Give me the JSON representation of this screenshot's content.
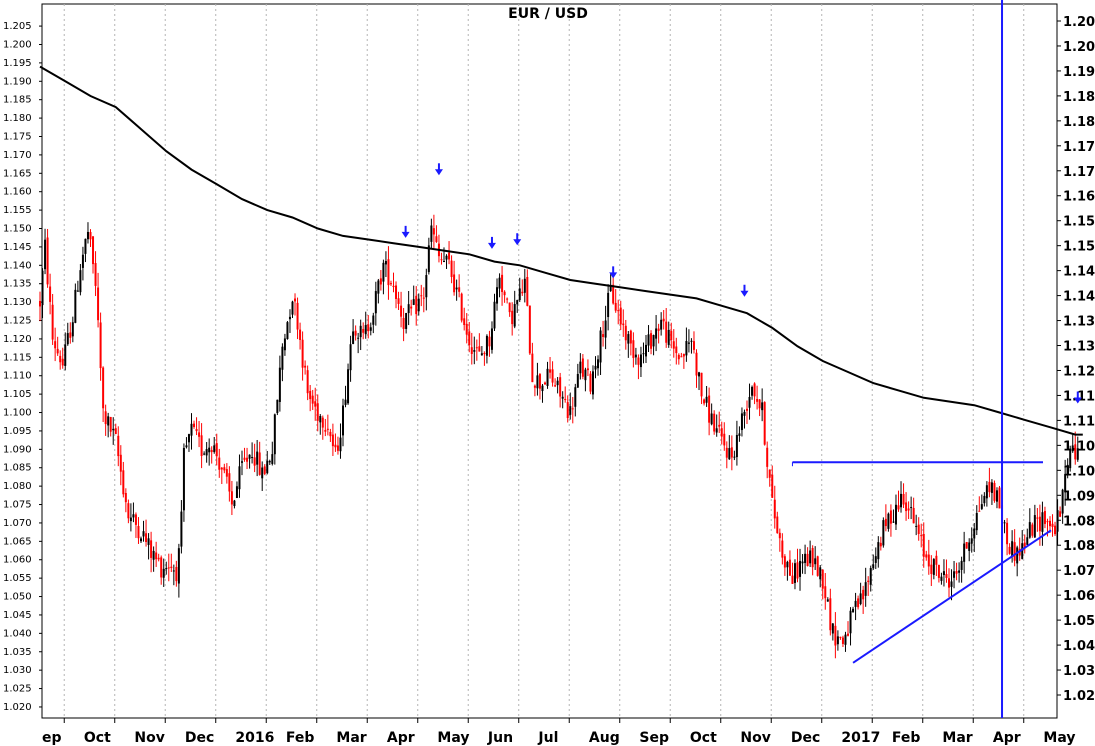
{
  "chart_data": {
    "type": "candlestick",
    "title": "EUR / USD",
    "xlabel": "",
    "ylabel": "",
    "ylim": [
      1.017,
      1.211
    ],
    "grid": "vertical dotted at month starts",
    "left_axis_ticks": [
      "1.020",
      "1.025",
      "1.030",
      "1.035",
      "1.040",
      "1.045",
      "1.050",
      "1.055",
      "1.060",
      "1.065",
      "1.070",
      "1.075",
      "1.080",
      "1.085",
      "1.090",
      "1.095",
      "1.100",
      "1.105",
      "1.110",
      "1.115",
      "1.120",
      "1.125",
      "1.130",
      "1.135",
      "1.140",
      "1.145",
      "1.150",
      "1.155",
      "1.160",
      "1.165",
      "1.170",
      "1.175",
      "1.180",
      "1.185",
      "1.190",
      "1.195",
      "1.200",
      "1.205"
    ],
    "right_axis_ticks": [
      "1.02",
      "1.03",
      "1.04",
      "1.05",
      "1.06",
      "1.07",
      "1.08",
      "1.08",
      "1.09",
      "1.10",
      "1.10",
      "1.11",
      "1.11",
      "1.12",
      "1.13",
      "1.13",
      "1.14",
      "1.14",
      "1.15",
      "1.15",
      "1.16",
      "1.17",
      "1.17",
      "1.18",
      "1.18",
      "1.19",
      "1.20",
      "1.20"
    ],
    "x_labels": [
      {
        "label": "ep",
        "m": 0.0
      },
      {
        "label": "Oct",
        "m": 0.83
      },
      {
        "label": "Nov",
        "m": 1.83
      },
      {
        "label": "Dec",
        "m": 2.83
      },
      {
        "label": "2016",
        "m": 3.83
      },
      {
        "label": "Feb",
        "m": 4.83
      },
      {
        "label": "Mar",
        "m": 5.83
      },
      {
        "label": "Apr",
        "m": 6.83
      },
      {
        "label": "May",
        "m": 7.83
      },
      {
        "label": "Jun",
        "m": 8.83
      },
      {
        "label": "Jul",
        "m": 9.83
      },
      {
        "label": "Aug",
        "m": 10.83
      },
      {
        "label": "Sep",
        "m": 11.83
      },
      {
        "label": "Oct",
        "m": 12.83
      },
      {
        "label": "Nov",
        "m": 13.83
      },
      {
        "label": "Dec",
        "m": 14.83
      },
      {
        "label": "2017",
        "m": 15.83
      },
      {
        "label": "Feb",
        "m": 16.83
      },
      {
        "label": "Mar",
        "m": 17.83
      },
      {
        "label": "Apr",
        "m": 18.83
      },
      {
        "label": "May",
        "m": 19.83
      }
    ],
    "price_path": [
      [
        0.0,
        1.13
      ],
      [
        0.1,
        1.145
      ],
      [
        0.25,
        1.12
      ],
      [
        0.45,
        1.113
      ],
      [
        0.65,
        1.126
      ],
      [
        0.8,
        1.14
      ],
      [
        0.95,
        1.149
      ],
      [
        1.1,
        1.135
      ],
      [
        1.25,
        1.1
      ],
      [
        1.5,
        1.092
      ],
      [
        1.75,
        1.072
      ],
      [
        2.0,
        1.068
      ],
      [
        2.2,
        1.062
      ],
      [
        2.4,
        1.058
      ],
      [
        2.55,
        1.059
      ],
      [
        2.7,
        1.057
      ],
      [
        2.78,
        1.063
      ],
      [
        2.85,
        1.088
      ],
      [
        3.0,
        1.095
      ],
      [
        3.2,
        1.09
      ],
      [
        3.4,
        1.092
      ],
      [
        3.6,
        1.085
      ],
      [
        3.8,
        1.075
      ],
      [
        4.0,
        1.085
      ],
      [
        4.2,
        1.09
      ],
      [
        4.4,
        1.083
      ],
      [
        4.6,
        1.09
      ],
      [
        4.8,
        1.118
      ],
      [
        5.0,
        1.132
      ],
      [
        5.1,
        1.125
      ],
      [
        5.3,
        1.105
      ],
      [
        5.5,
        1.1
      ],
      [
        5.7,
        1.097
      ],
      [
        5.85,
        1.088
      ],
      [
        6.0,
        1.1
      ],
      [
        6.2,
        1.125
      ],
      [
        6.4,
        1.12
      ],
      [
        6.6,
        1.128
      ],
      [
        6.8,
        1.14
      ],
      [
        7.0,
        1.135
      ],
      [
        7.2,
        1.125
      ],
      [
        7.4,
        1.128
      ],
      [
        7.6,
        1.132
      ],
      [
        7.75,
        1.15
      ],
      [
        7.9,
        1.142
      ],
      [
        8.1,
        1.14
      ],
      [
        8.3,
        1.13
      ],
      [
        8.5,
        1.12
      ],
      [
        8.7,
        1.115
      ],
      [
        8.9,
        1.12
      ],
      [
        9.1,
        1.138
      ],
      [
        9.3,
        1.125
      ],
      [
        9.45,
        1.13
      ],
      [
        9.6,
        1.135
      ],
      [
        9.75,
        1.11
      ],
      [
        9.9,
        1.108
      ],
      [
        10.1,
        1.11
      ],
      [
        10.3,
        1.105
      ],
      [
        10.5,
        1.1
      ],
      [
        10.7,
        1.112
      ],
      [
        10.9,
        1.108
      ],
      [
        11.1,
        1.12
      ],
      [
        11.3,
        1.133
      ],
      [
        11.5,
        1.125
      ],
      [
        11.7,
        1.118
      ],
      [
        11.9,
        1.115
      ],
      [
        12.1,
        1.12
      ],
      [
        12.3,
        1.125
      ],
      [
        12.5,
        1.118
      ],
      [
        12.7,
        1.115
      ],
      [
        12.9,
        1.12
      ],
      [
        13.1,
        1.105
      ],
      [
        13.3,
        1.098
      ],
      [
        13.5,
        1.092
      ],
      [
        13.7,
        1.088
      ],
      [
        13.9,
        1.098
      ],
      [
        14.1,
        1.108
      ],
      [
        14.3,
        1.1
      ],
      [
        14.5,
        1.075
      ],
      [
        14.7,
        1.062
      ],
      [
        14.9,
        1.055
      ],
      [
        15.1,
        1.06
      ],
      [
        15.3,
        1.06
      ],
      [
        15.5,
        1.055
      ],
      [
        15.7,
        1.04
      ],
      [
        15.9,
        1.038
      ],
      [
        16.1,
        1.045
      ],
      [
        16.3,
        1.05
      ],
      [
        16.5,
        1.06
      ],
      [
        16.7,
        1.068
      ],
      [
        16.9,
        1.073
      ],
      [
        17.1,
        1.078
      ],
      [
        17.3,
        1.07
      ],
      [
        17.5,
        1.062
      ],
      [
        17.7,
        1.058
      ],
      [
        17.9,
        1.055
      ],
      [
        18.1,
        1.055
      ],
      [
        18.3,
        1.062
      ],
      [
        18.5,
        1.07
      ],
      [
        18.7,
        1.078
      ],
      [
        18.85,
        1.08
      ],
      [
        19.0,
        1.075
      ],
      [
        19.15,
        1.065
      ],
      [
        19.3,
        1.062
      ],
      [
        19.45,
        1.063
      ],
      [
        19.6,
        1.068
      ],
      [
        19.75,
        1.07
      ],
      [
        19.9,
        1.072
      ],
      [
        20.05,
        1.068
      ],
      [
        20.2,
        1.072
      ],
      [
        20.35,
        1.088
      ],
      [
        20.5,
        1.09
      ],
      [
        20.6,
        1.085
      ]
    ],
    "moving_average": [
      [
        0.0,
        1.194
      ],
      [
        0.5,
        1.19
      ],
      [
        1.0,
        1.186
      ],
      [
        1.5,
        1.183
      ],
      [
        2.0,
        1.177
      ],
      [
        2.5,
        1.171
      ],
      [
        3.0,
        1.166
      ],
      [
        3.5,
        1.162
      ],
      [
        4.0,
        1.158
      ],
      [
        4.5,
        1.155
      ],
      [
        5.0,
        1.153
      ],
      [
        5.5,
        1.15
      ],
      [
        6.0,
        1.148
      ],
      [
        6.5,
        1.147
      ],
      [
        7.0,
        1.146
      ],
      [
        7.5,
        1.145
      ],
      [
        8.0,
        1.144
      ],
      [
        8.5,
        1.143
      ],
      [
        9.0,
        1.141
      ],
      [
        9.5,
        1.14
      ],
      [
        10.0,
        1.138
      ],
      [
        10.5,
        1.136
      ],
      [
        11.0,
        1.135
      ],
      [
        11.5,
        1.134
      ],
      [
        12.0,
        1.133
      ],
      [
        12.5,
        1.132
      ],
      [
        13.0,
        1.131
      ],
      [
        13.5,
        1.129
      ],
      [
        14.0,
        1.127
      ],
      [
        14.5,
        1.123
      ],
      [
        15.0,
        1.118
      ],
      [
        15.5,
        1.114
      ],
      [
        16.0,
        1.111
      ],
      [
        16.5,
        1.108
      ],
      [
        17.0,
        1.106
      ],
      [
        17.5,
        1.104
      ],
      [
        18.0,
        1.103
      ],
      [
        18.5,
        1.102
      ],
      [
        19.0,
        1.1
      ],
      [
        19.5,
        1.098
      ],
      [
        20.0,
        1.096
      ],
      [
        20.5,
        1.094
      ],
      [
        20.65,
        1.094
      ]
    ],
    "blue_arrows": [
      {
        "m": 7.24,
        "value": 1.148
      },
      {
        "m": 7.9,
        "value": 1.165
      },
      {
        "m": 8.95,
        "value": 1.145
      },
      {
        "m": 9.45,
        "value": 1.146
      },
      {
        "m": 11.35,
        "value": 1.137
      },
      {
        "m": 13.95,
        "value": 1.132
      },
      {
        "m": 20.55,
        "value": 1.103
      }
    ],
    "horizontal_resistance": {
      "m_start": 14.9,
      "m_end": 21.0,
      "value": 1.0865
    },
    "rising_trendline": {
      "m_start": 16.1,
      "value_start": 1.032,
      "m_end": 21.1,
      "value_end": 1.068
    },
    "vertical_marker": {
      "m": 19.05
    },
    "colors": {
      "up": "#000000",
      "down": "#ff0000",
      "moving_average": "#000000",
      "annotation": "#1a1aff",
      "grid": "#b4b4b4"
    }
  }
}
